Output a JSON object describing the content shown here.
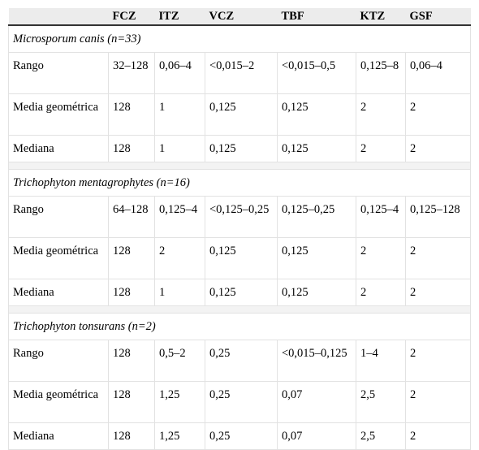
{
  "headers": [
    "",
    "FCZ",
    "ITZ",
    "VCZ",
    "TBF",
    "KTZ",
    "GSF"
  ],
  "groups": [
    {
      "title": "Microsporum canis (n=33)",
      "rows": [
        {
          "label": "Rango",
          "values": [
            "32–128",
            "0,06–4",
            "<0,015–2",
            "<0,015–0,5",
            "0,125–8",
            "0,06–4"
          ]
        },
        {
          "label": "Media geométrica",
          "values": [
            "128",
            "1",
            "0,125",
            "0,125",
            "2",
            "2"
          ]
        },
        {
          "label": "Mediana",
          "values": [
            "128",
            "1",
            "0,125",
            "0,125",
            "2",
            "2"
          ]
        }
      ]
    },
    {
      "title": "Trichophyton mentagrophytes (n=16)",
      "rows": [
        {
          "label": "Rango",
          "values": [
            "64–128",
            "0,125–4",
            "<0,125–0,25",
            "0,125–0,25",
            "0,125–4",
            "0,125–128"
          ]
        },
        {
          "label": "Media geométrica",
          "values": [
            "128",
            "2",
            "0,125",
            "0,125",
            "2",
            "2"
          ]
        },
        {
          "label": "Mediana",
          "values": [
            "128",
            "1",
            "0,125",
            "0,125",
            "2",
            "2"
          ]
        }
      ]
    },
    {
      "title": "Trichophyton tonsurans (n=2)",
      "rows": [
        {
          "label": "Rango",
          "values": [
            "128",
            "0,5–2",
            "0,25",
            "<0,015–0,125",
            "1–4",
            "2"
          ]
        },
        {
          "label": "Media geométrica",
          "values": [
            "128",
            "1,25",
            "0,25",
            "0,07",
            "2,5",
            "2"
          ]
        },
        {
          "label": "Mediana",
          "values": [
            "128",
            "1,25",
            "0,25",
            "0,07",
            "2,5",
            "2"
          ]
        }
      ]
    }
  ]
}
